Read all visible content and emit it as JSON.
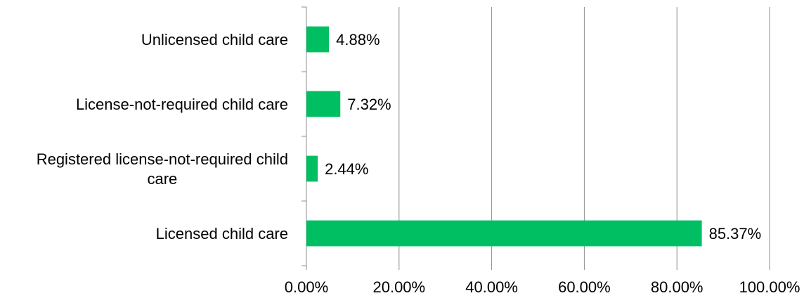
{
  "chart_data": {
    "type": "bar",
    "orientation": "horizontal",
    "categories": [
      "Unlicensed child care",
      "License-not-required child care",
      "Registered license-not-required child care",
      "Licensed child care"
    ],
    "category_label_lines": [
      [
        "Unlicensed child care"
      ],
      [
        "License-not-required child care"
      ],
      [
        "Registered license-not-required child",
        "care"
      ],
      [
        "Licensed child care"
      ]
    ],
    "values": [
      4.88,
      7.32,
      2.44,
      85.37
    ],
    "data_labels": [
      "4.88%",
      "7.32%",
      "2.44%",
      "85.37%"
    ],
    "x_ticks": [
      0,
      20,
      40,
      60,
      80,
      100
    ],
    "x_tick_labels": [
      "0.00%",
      "20.00%",
      "40.00%",
      "60.00%",
      "80.00%",
      "100.00%"
    ],
    "xlim": [
      0,
      100
    ],
    "grid": "vertical",
    "legend": "none",
    "bar_color": "#00BF63",
    "title": "",
    "xlabel": "",
    "ylabel": ""
  }
}
